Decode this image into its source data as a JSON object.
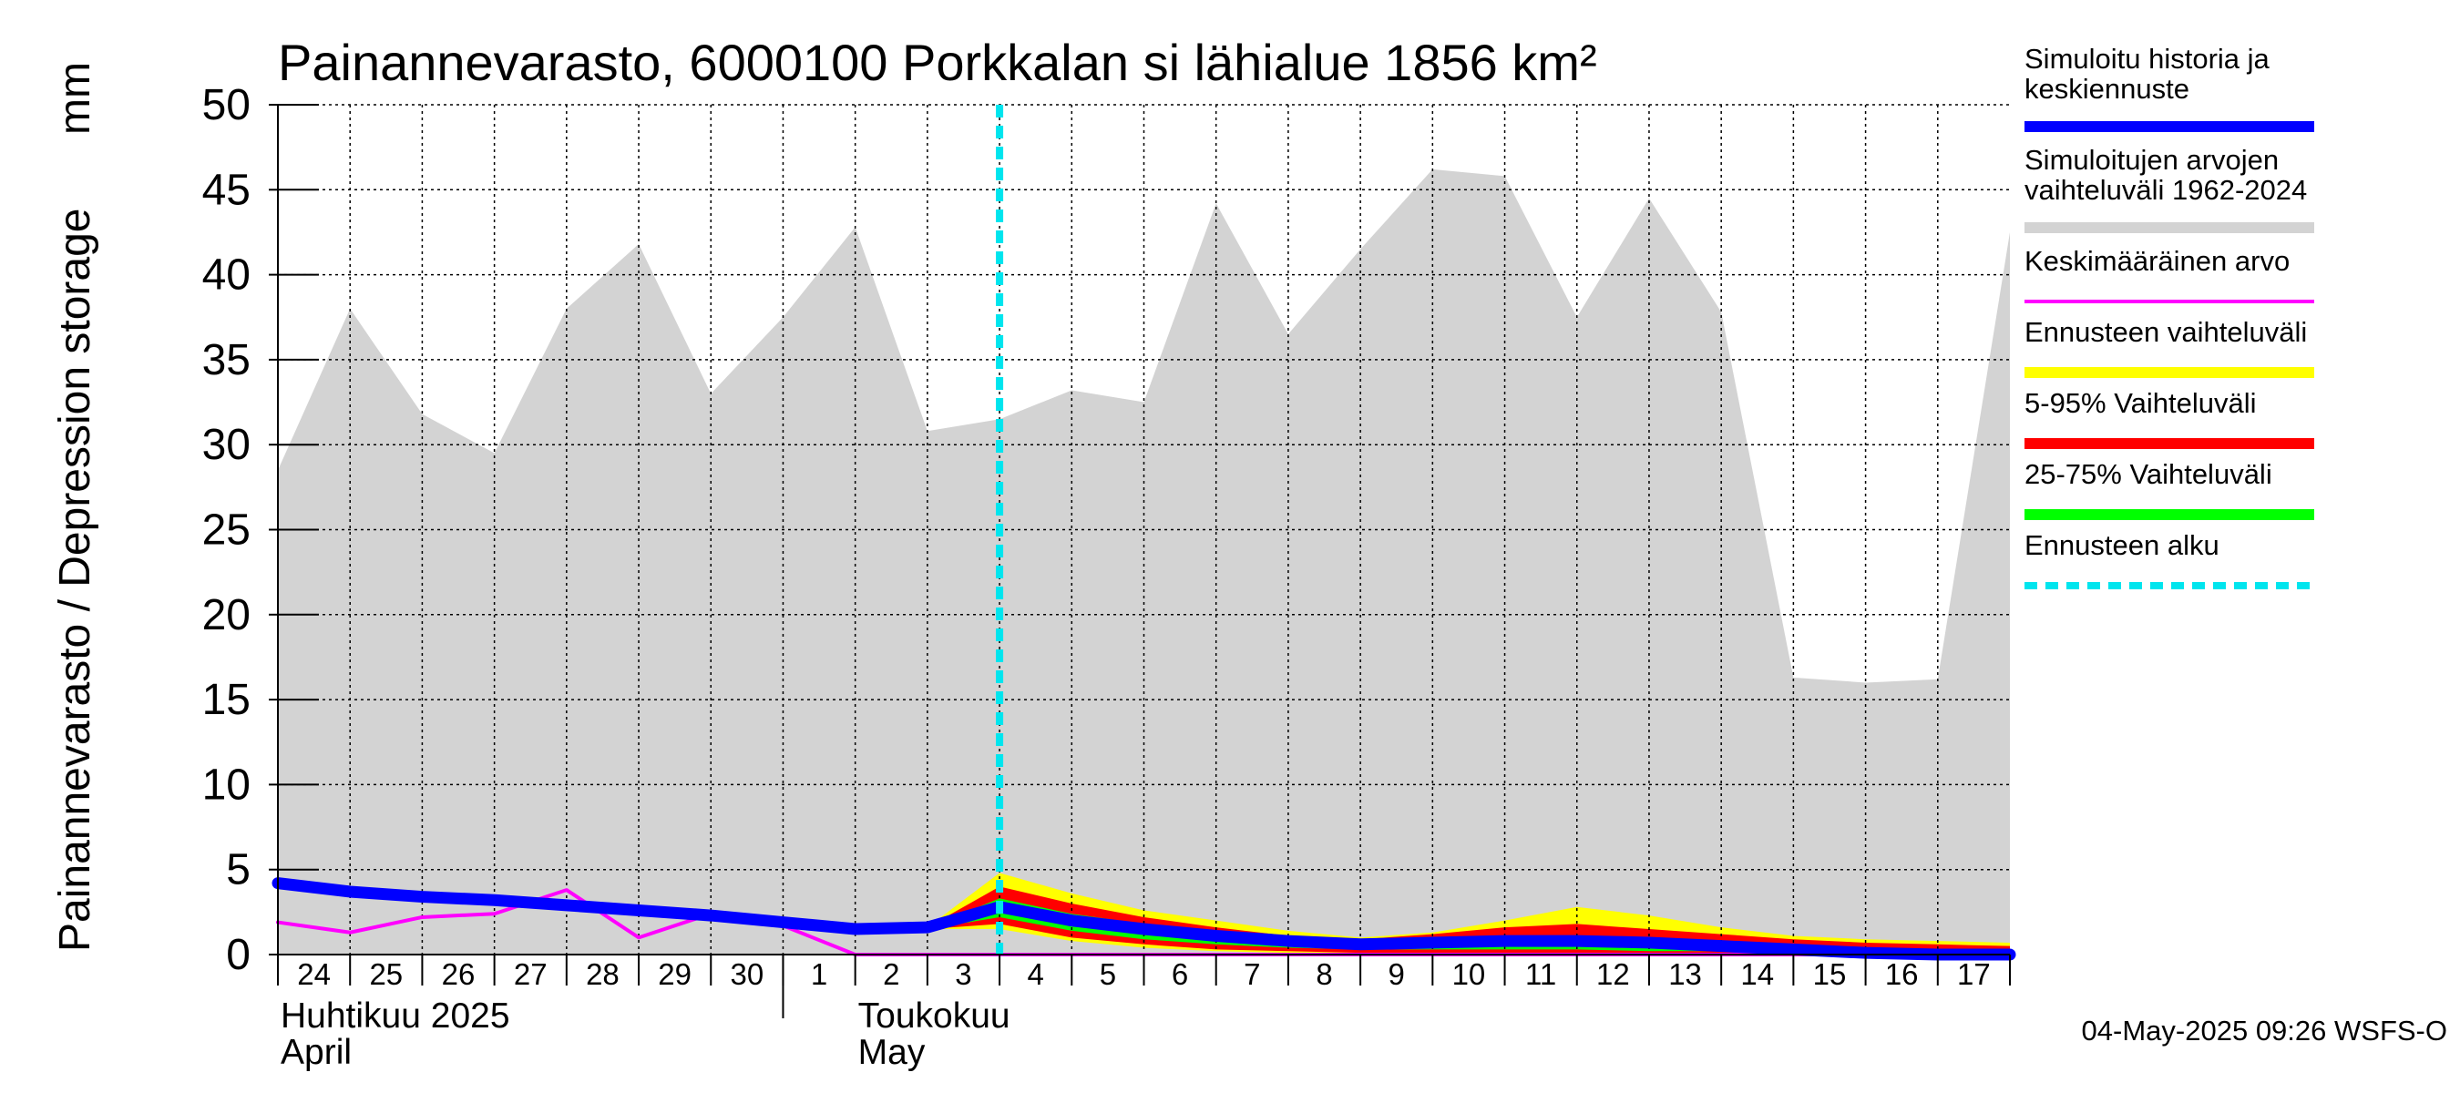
{
  "chart_data": {
    "type": "area",
    "title": "Painannevarasto, 6000100 Porkkalan si lähialue 1856 km²",
    "ylabel": "Painannevarasto / Depression storage",
    "yunit": "mm",
    "ylim": [
      0,
      50
    ],
    "yticks": [
      0,
      5,
      10,
      15,
      20,
      25,
      30,
      35,
      40,
      45,
      50
    ],
    "grid": true,
    "legend_placement": "right",
    "xticks": [
      {
        "x": "2025-04-24",
        "label": "24"
      },
      {
        "x": "2025-04-25",
        "label": "25"
      },
      {
        "x": "2025-04-26",
        "label": "26"
      },
      {
        "x": "2025-04-27",
        "label": "27"
      },
      {
        "x": "2025-04-28",
        "label": "28"
      },
      {
        "x": "2025-04-29",
        "label": "29"
      },
      {
        "x": "2025-04-30",
        "label": "30"
      },
      {
        "x": "2025-05-01",
        "label": "1"
      },
      {
        "x": "2025-05-02",
        "label": "2"
      },
      {
        "x": "2025-05-03",
        "label": "3"
      },
      {
        "x": "2025-05-04",
        "label": "4"
      },
      {
        "x": "2025-05-05",
        "label": "5"
      },
      {
        "x": "2025-05-06",
        "label": "6"
      },
      {
        "x": "2025-05-07",
        "label": "7"
      },
      {
        "x": "2025-05-08",
        "label": "8"
      },
      {
        "x": "2025-05-09",
        "label": "9"
      },
      {
        "x": "2025-05-10",
        "label": "10"
      },
      {
        "x": "2025-05-11",
        "label": "11"
      },
      {
        "x": "2025-05-12",
        "label": "12"
      },
      {
        "x": "2025-05-13",
        "label": "13"
      },
      {
        "x": "2025-05-14",
        "label": "14"
      },
      {
        "x": "2025-05-15",
        "label": "15"
      },
      {
        "x": "2025-05-16",
        "label": "16"
      },
      {
        "x": "2025-05-17",
        "label": "17"
      }
    ],
    "month_labels": [
      {
        "x": "2025-04-24",
        "line1": "Huhtikuu  2025",
        "line2": "April"
      },
      {
        "x": "2025-05-02",
        "line1": "Toukokuu",
        "line2": "May"
      }
    ],
    "month_divider": "2025-05-01",
    "forecast_start": "2025-05-04",
    "xlim": [
      "2025-04-24",
      "2025-05-18"
    ],
    "series": [
      {
        "name": "Simuloitujen arvojen vaihteluväli 1962-2024",
        "kind": "band",
        "color": "#d3d3d3",
        "points": [
          {
            "x": "2025-04-24",
            "low": 0,
            "high": 28.5
          },
          {
            "x": "2025-04-25",
            "low": 0,
            "high": 38.0
          },
          {
            "x": "2025-04-26",
            "low": 0,
            "high": 31.8
          },
          {
            "x": "2025-04-27",
            "low": 0,
            "high": 29.5
          },
          {
            "x": "2025-04-28",
            "low": 0,
            "high": 38.0
          },
          {
            "x": "2025-04-29",
            "low": 0,
            "high": 41.8
          },
          {
            "x": "2025-04-30",
            "low": 0,
            "high": 33.0
          },
          {
            "x": "2025-05-01",
            "low": 0,
            "high": 37.5
          },
          {
            "x": "2025-05-02",
            "low": 0,
            "high": 42.8
          },
          {
            "x": "2025-05-03",
            "low": 0,
            "high": 30.8
          },
          {
            "x": "2025-05-04",
            "low": 0,
            "high": 31.5
          },
          {
            "x": "2025-05-05",
            "low": 0,
            "high": 33.2
          },
          {
            "x": "2025-05-06",
            "low": 0,
            "high": 32.5
          },
          {
            "x": "2025-05-07",
            "low": 0,
            "high": 44.2
          },
          {
            "x": "2025-05-08",
            "low": 0,
            "high": 36.5
          },
          {
            "x": "2025-05-09",
            "low": 0,
            "high": 41.5
          },
          {
            "x": "2025-05-10",
            "low": 0,
            "high": 46.2
          },
          {
            "x": "2025-05-11",
            "low": 0,
            "high": 45.8
          },
          {
            "x": "2025-05-12",
            "low": 0,
            "high": 37.5
          },
          {
            "x": "2025-05-13",
            "low": 0,
            "high": 44.5
          },
          {
            "x": "2025-05-14",
            "low": 0,
            "high": 37.8
          },
          {
            "x": "2025-05-15",
            "low": 0,
            "high": 16.3
          },
          {
            "x": "2025-05-16",
            "low": 0,
            "high": 16.0
          },
          {
            "x": "2025-05-17",
            "low": 0,
            "high": 16.2
          },
          {
            "x": "2025-05-18",
            "low": 0,
            "high": 42.5
          }
        ]
      },
      {
        "name": "Ennusteen vaihteluväli",
        "kind": "band",
        "color": "#ffff00",
        "points": [
          {
            "x": "2025-05-03",
            "low": 1.5,
            "high": 1.6
          },
          {
            "x": "2025-05-04",
            "low": 1.5,
            "high": 4.8
          },
          {
            "x": "2025-05-05",
            "low": 0.8,
            "high": 3.6
          },
          {
            "x": "2025-05-06",
            "low": 0.4,
            "high": 2.6
          },
          {
            "x": "2025-05-07",
            "low": 0.2,
            "high": 2.0
          },
          {
            "x": "2025-05-08",
            "low": 0.1,
            "high": 1.4
          },
          {
            "x": "2025-05-09",
            "low": 0.1,
            "high": 1.0
          },
          {
            "x": "2025-05-10",
            "low": 0.1,
            "high": 1.3
          },
          {
            "x": "2025-05-11",
            "low": 0.1,
            "high": 2.0
          },
          {
            "x": "2025-05-12",
            "low": 0.1,
            "high": 2.8
          },
          {
            "x": "2025-05-13",
            "low": 0.1,
            "high": 2.3
          },
          {
            "x": "2025-05-14",
            "low": 0.0,
            "high": 1.6
          },
          {
            "x": "2025-05-15",
            "low": 0.0,
            "high": 1.1
          },
          {
            "x": "2025-05-16",
            "low": 0.0,
            "high": 0.9
          },
          {
            "x": "2025-05-17",
            "low": 0.0,
            "high": 0.8
          },
          {
            "x": "2025-05-18",
            "low": 0.0,
            "high": 0.7
          }
        ]
      },
      {
        "name": "5-95% Vaihteluväli",
        "kind": "band",
        "color": "#ff0000",
        "points": [
          {
            "x": "2025-05-03",
            "low": 1.5,
            "high": 1.6
          },
          {
            "x": "2025-05-04",
            "low": 1.8,
            "high": 4.0
          },
          {
            "x": "2025-05-05",
            "low": 1.0,
            "high": 3.0
          },
          {
            "x": "2025-05-06",
            "low": 0.6,
            "high": 2.2
          },
          {
            "x": "2025-05-07",
            "low": 0.3,
            "high": 1.6
          },
          {
            "x": "2025-05-08",
            "low": 0.2,
            "high": 1.1
          },
          {
            "x": "2025-05-09",
            "low": 0.1,
            "high": 0.9
          },
          {
            "x": "2025-05-10",
            "low": 0.1,
            "high": 1.2
          },
          {
            "x": "2025-05-11",
            "low": 0.1,
            "high": 1.6
          },
          {
            "x": "2025-05-12",
            "low": 0.1,
            "high": 1.8
          },
          {
            "x": "2025-05-13",
            "low": 0.1,
            "high": 1.5
          },
          {
            "x": "2025-05-14",
            "low": 0.1,
            "high": 1.2
          },
          {
            "x": "2025-05-15",
            "low": 0.0,
            "high": 0.9
          },
          {
            "x": "2025-05-16",
            "low": 0.0,
            "high": 0.7
          },
          {
            "x": "2025-05-17",
            "low": 0.0,
            "high": 0.6
          },
          {
            "x": "2025-05-18",
            "low": 0.0,
            "high": 0.5
          }
        ]
      },
      {
        "name": "25-75% Vaihteluväli",
        "kind": "band",
        "color": "#00ff00",
        "points": [
          {
            "x": "2025-05-03",
            "low": 1.5,
            "high": 1.6
          },
          {
            "x": "2025-05-04",
            "low": 2.2,
            "high": 3.3
          },
          {
            "x": "2025-05-05",
            "low": 1.4,
            "high": 2.4
          },
          {
            "x": "2025-05-06",
            "low": 0.9,
            "high": 1.8
          },
          {
            "x": "2025-05-07",
            "low": 0.6,
            "high": 1.3
          },
          {
            "x": "2025-05-08",
            "low": 0.4,
            "high": 1.0
          },
          {
            "x": "2025-05-09",
            "low": 0.3,
            "high": 0.8
          },
          {
            "x": "2025-05-10",
            "low": 0.3,
            "high": 0.9
          },
          {
            "x": "2025-05-11",
            "low": 0.3,
            "high": 1.0
          },
          {
            "x": "2025-05-12",
            "low": 0.3,
            "high": 1.0
          },
          {
            "x": "2025-05-13",
            "low": 0.2,
            "high": 0.9
          },
          {
            "x": "2025-05-14",
            "low": 0.2,
            "high": 0.7
          },
          {
            "x": "2025-05-15",
            "low": 0.1,
            "high": 0.5
          },
          {
            "x": "2025-05-16",
            "low": 0.1,
            "high": 0.4
          },
          {
            "x": "2025-05-17",
            "low": 0.1,
            "high": 0.3
          },
          {
            "x": "2025-05-18",
            "low": 0.1,
            "high": 0.3
          }
        ]
      },
      {
        "name": "Keskimääräinen arvo",
        "kind": "line",
        "color": "#ff00ff",
        "width": 4,
        "points": [
          {
            "x": "2025-04-24",
            "y": 1.9
          },
          {
            "x": "2025-04-25",
            "y": 1.3
          },
          {
            "x": "2025-04-26",
            "y": 2.2
          },
          {
            "x": "2025-04-27",
            "y": 2.4
          },
          {
            "x": "2025-04-28",
            "y": 3.8
          },
          {
            "x": "2025-04-29",
            "y": 1.0
          },
          {
            "x": "2025-04-30",
            "y": 2.4
          },
          {
            "x": "2025-05-01",
            "y": 1.7
          },
          {
            "x": "2025-05-02",
            "y": 0.0
          },
          {
            "x": "2025-05-03",
            "y": 0.0
          },
          {
            "x": "2025-05-04",
            "y": 0.0
          },
          {
            "x": "2025-05-05",
            "y": 0.0
          },
          {
            "x": "2025-05-06",
            "y": 0.0
          },
          {
            "x": "2025-05-07",
            "y": 0.0
          },
          {
            "x": "2025-05-08",
            "y": 0.0
          },
          {
            "x": "2025-05-09",
            "y": 0.0
          },
          {
            "x": "2025-05-10",
            "y": 0.0
          },
          {
            "x": "2025-05-11",
            "y": 0.0
          },
          {
            "x": "2025-05-12",
            "y": 0.0
          },
          {
            "x": "2025-05-13",
            "y": 0.0
          },
          {
            "x": "2025-05-14",
            "y": 0.0
          },
          {
            "x": "2025-05-15",
            "y": 0.0
          },
          {
            "x": "2025-05-16",
            "y": 0.0
          },
          {
            "x": "2025-05-17",
            "y": 0.0
          },
          {
            "x": "2025-05-18",
            "y": 0.0
          }
        ]
      },
      {
        "name": "Simuloitu historia ja keskiennuste",
        "kind": "line",
        "color": "#0000ff",
        "width": 13,
        "points": [
          {
            "x": "2025-04-24",
            "y": 4.2
          },
          {
            "x": "2025-04-25",
            "y": 3.7
          },
          {
            "x": "2025-04-26",
            "y": 3.4
          },
          {
            "x": "2025-04-27",
            "y": 3.2
          },
          {
            "x": "2025-04-28",
            "y": 2.9
          },
          {
            "x": "2025-04-29",
            "y": 2.6
          },
          {
            "x": "2025-04-30",
            "y": 2.3
          },
          {
            "x": "2025-05-01",
            "y": 1.9
          },
          {
            "x": "2025-05-02",
            "y": 1.5
          },
          {
            "x": "2025-05-03",
            "y": 1.6
          },
          {
            "x": "2025-05-04",
            "y": 2.8
          },
          {
            "x": "2025-05-05",
            "y": 2.0
          },
          {
            "x": "2025-05-06",
            "y": 1.5
          },
          {
            "x": "2025-05-07",
            "y": 1.1
          },
          {
            "x": "2025-05-08",
            "y": 0.8
          },
          {
            "x": "2025-05-09",
            "y": 0.6
          },
          {
            "x": "2025-05-10",
            "y": 0.7
          },
          {
            "x": "2025-05-11",
            "y": 0.8
          },
          {
            "x": "2025-05-12",
            "y": 0.8
          },
          {
            "x": "2025-05-13",
            "y": 0.7
          },
          {
            "x": "2025-05-14",
            "y": 0.5
          },
          {
            "x": "2025-05-15",
            "y": 0.3
          },
          {
            "x": "2025-05-16",
            "y": 0.1
          },
          {
            "x": "2025-05-17",
            "y": 0.0
          },
          {
            "x": "2025-05-18",
            "y": 0.0
          }
        ]
      }
    ],
    "legend": [
      {
        "text": "Simuloitu historia ja",
        "text2": "keskiennuste",
        "color": "#0000ff",
        "style": "solid"
      },
      {
        "text": "Simuloitujen arvojen",
        "text2": "vaihteluväli 1962-2024",
        "color": "#d3d3d3",
        "style": "solid"
      },
      {
        "text": "Keskimääräinen arvo",
        "text2": "",
        "color": "#ff00ff",
        "style": "thin"
      },
      {
        "text": "Ennusteen vaihteluväli",
        "text2": "",
        "color": "#ffff00",
        "style": "solid"
      },
      {
        "text": "5-95% Vaihteluväli",
        "text2": "",
        "color": "#ff0000",
        "style": "solid"
      },
      {
        "text": "25-75% Vaihteluväli",
        "text2": "",
        "color": "#00ff00",
        "style": "solid"
      },
      {
        "text": "Ennusteen alku",
        "text2": "",
        "color": "#00e5ee",
        "style": "dashed"
      }
    ],
    "forecast_line_color": "#00e5ee",
    "footer": "04-May-2025 09:26 WSFS-O"
  }
}
